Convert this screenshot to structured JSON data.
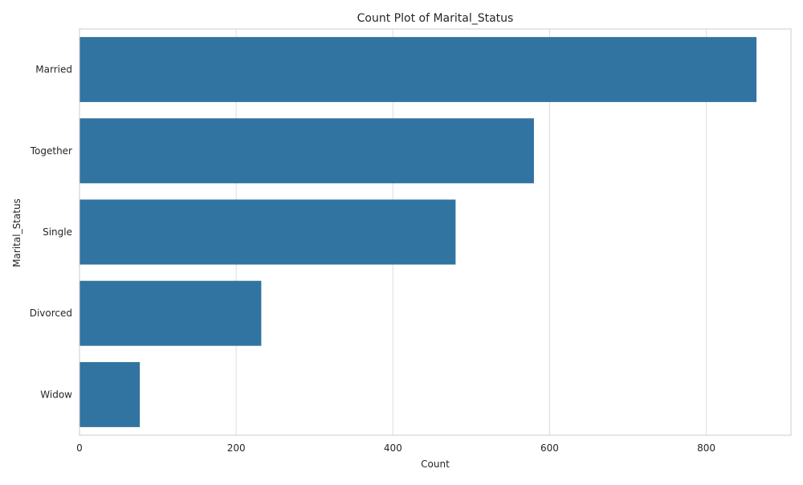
{
  "chart_data": {
    "type": "bar",
    "orientation": "horizontal",
    "title": "Count Plot of Marital_Status",
    "xlabel": "Count",
    "ylabel": "Marital_Status",
    "categories": [
      "Married",
      "Together",
      "Single",
      "Divorced",
      "Widow"
    ],
    "values": [
      864,
      580,
      480,
      232,
      77
    ],
    "xlim": [
      0,
      908
    ],
    "xticks": [
      0,
      200,
      400,
      600,
      800
    ],
    "grid": true,
    "bar_color": "#3274a1",
    "grid_color": "#dddddd",
    "axes_edge_color": "#cccccc"
  }
}
